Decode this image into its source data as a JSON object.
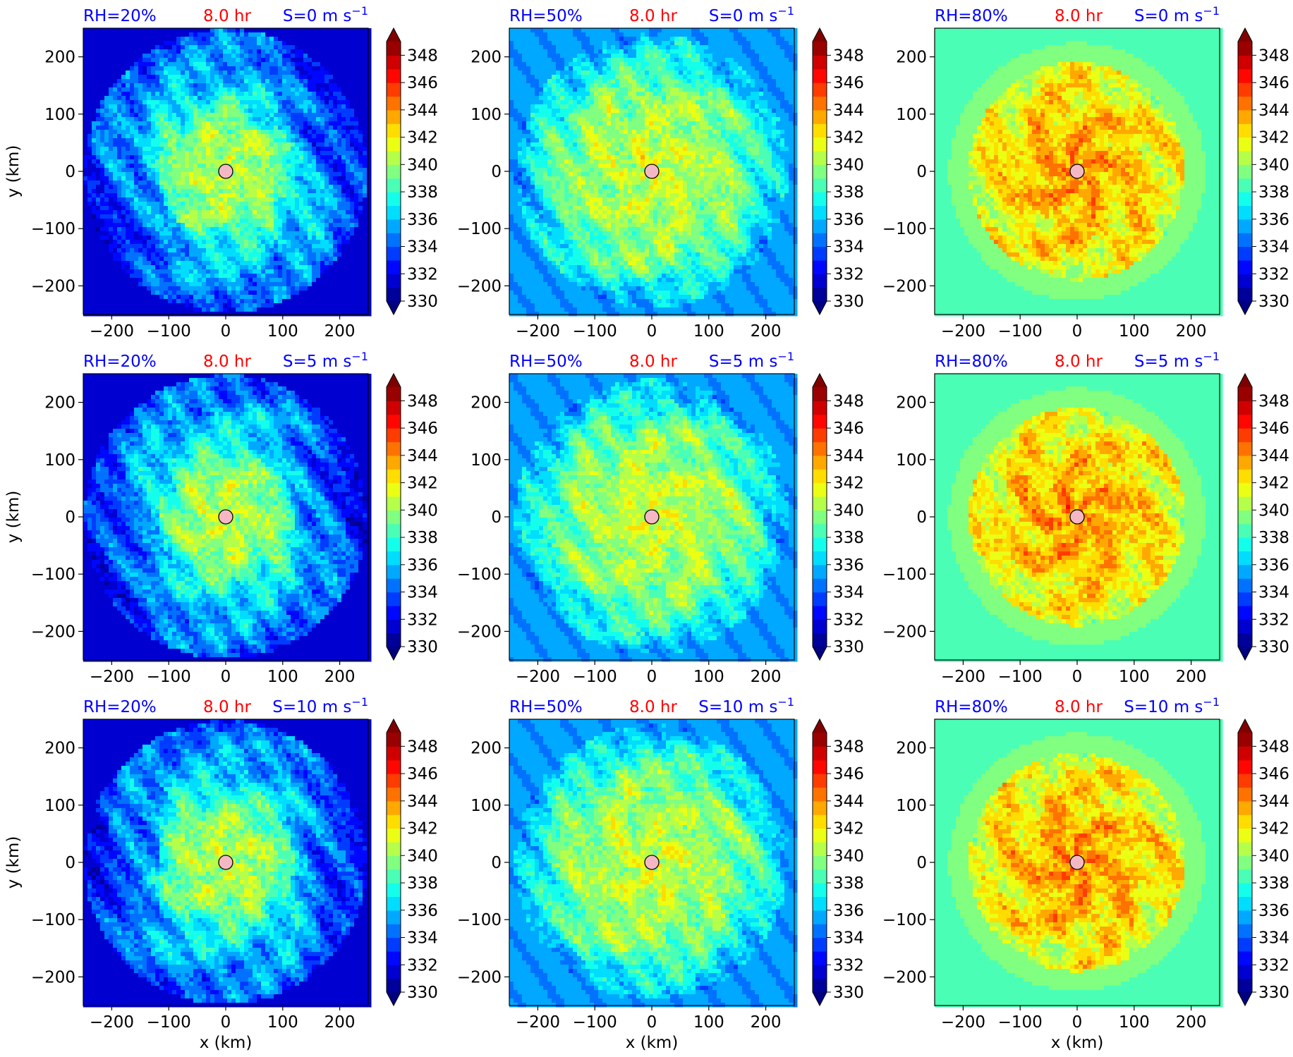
{
  "chart_data": {
    "type": "heatmap",
    "rows": 3,
    "cols": 3,
    "x_ticks": [
      -200,
      -100,
      0,
      100,
      200
    ],
    "y_ticks": [
      -200,
      -100,
      0,
      100,
      200
    ],
    "xlim": [
      -250,
      250
    ],
    "ylim": [
      -250,
      250
    ],
    "xlabel": "x (km)",
    "ylabel": "y (km)",
    "colorbar": {
      "levels": [
        330,
        331,
        332,
        333,
        334,
        335,
        336,
        337,
        338,
        339,
        340,
        341,
        342,
        343,
        344,
        345,
        346,
        347,
        348,
        349
      ],
      "tick_values": [
        330,
        332,
        334,
        336,
        338,
        340,
        342,
        344,
        346,
        348
      ],
      "extend": "both",
      "colormap": "jet"
    },
    "time_label": "8.0 hr",
    "center_marker": {
      "x": 0,
      "y": 0,
      "color": "#f4b8c4"
    },
    "panels": [
      {
        "rh_label": "RH=20%",
        "s_value": "0",
        "rh": 20
      },
      {
        "rh_label": "RH=50%",
        "s_value": "0",
        "rh": 50
      },
      {
        "rh_label": "RH=80%",
        "s_value": "0",
        "rh": 80
      },
      {
        "rh_label": "RH=20%",
        "s_value": "5",
        "rh": 20
      },
      {
        "rh_label": "RH=50%",
        "s_value": "5",
        "rh": 50
      },
      {
        "rh_label": "RH=80%",
        "s_value": "5",
        "rh": 80
      },
      {
        "rh_label": "RH=20%",
        "s_value": "10",
        "rh": 20
      },
      {
        "rh_label": "RH=50%",
        "s_value": "10",
        "rh": 50
      },
      {
        "rh_label": "RH=80%",
        "s_value": "10",
        "rh": 80
      }
    ],
    "s_prefix": "S=",
    "s_unit": "m s",
    "s_exponent": "−1",
    "colors": {
      "rh_label": "#0000ff",
      "time_label": "#ff0000",
      "s_label": "#0000ff"
    }
  }
}
